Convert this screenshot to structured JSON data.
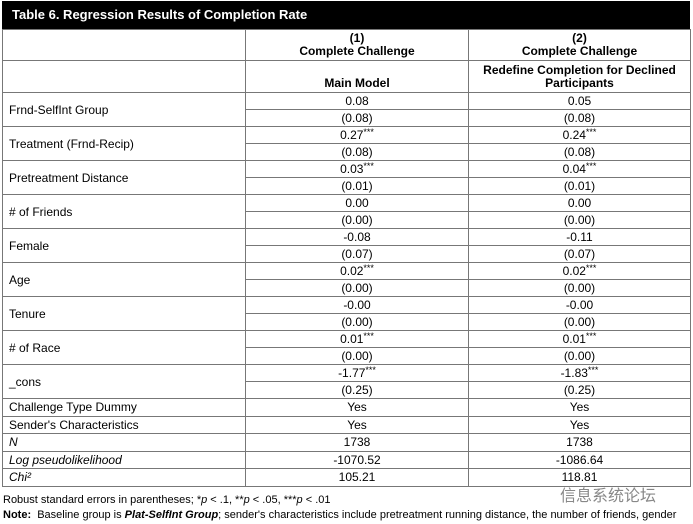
{
  "title": "Table 6.  Regression Results of Completion Rate",
  "header": {
    "col1": {
      "number": "(1)",
      "name": "Complete Challenge",
      "model": "Main Model"
    },
    "col2": {
      "number": "(2)",
      "name": "Complete Challenge",
      "model": "Redefine Completion for Declined Participants"
    }
  },
  "rows": [
    {
      "label": "Frnd-SelfInt Group",
      "col1": {
        "coef": "0.08",
        "stars": "",
        "se": "(0.08)"
      },
      "col2": {
        "coef": "0.05",
        "stars": "",
        "se": "(0.08)"
      }
    },
    {
      "label": "Treatment (Frnd-Recip)",
      "col1": {
        "coef": "0.27",
        "stars": "***",
        "se": "(0.08)"
      },
      "col2": {
        "coef": "0.24",
        "stars": "***",
        "se": "(0.08)"
      }
    },
    {
      "label": "Pretreatment Distance",
      "col1": {
        "coef": "0.03",
        "stars": "***",
        "se": "(0.01)"
      },
      "col2": {
        "coef": "0.04",
        "stars": "***",
        "se": "(0.01)"
      }
    },
    {
      "label": "# of Friends",
      "col1": {
        "coef": "0.00",
        "stars": "",
        "se": "(0.00)"
      },
      "col2": {
        "coef": "0.00",
        "stars": "",
        "se": "(0.00)"
      }
    },
    {
      "label": "Female",
      "col1": {
        "coef": "-0.08",
        "stars": "",
        "se": "(0.07)"
      },
      "col2": {
        "coef": "-0.11",
        "stars": "",
        "se": "(0.07)"
      }
    },
    {
      "label": "Age",
      "col1": {
        "coef": "0.02",
        "stars": "***",
        "se": "(0.00)"
      },
      "col2": {
        "coef": "0.02",
        "stars": "***",
        "se": "(0.00)"
      }
    },
    {
      "label": "Tenure",
      "col1": {
        "coef": "-0.00",
        "stars": "",
        "se": "(0.00)"
      },
      "col2": {
        "coef": "-0.00",
        "stars": "",
        "se": "(0.00)"
      }
    },
    {
      "label": "# of Race",
      "col1": {
        "coef": "0.01",
        "stars": "***",
        "se": "(0.00)"
      },
      "col2": {
        "coef": "0.01",
        "stars": "***",
        "se": "(0.00)"
      }
    },
    {
      "label": "_cons",
      "col1": {
        "coef": "-1.77",
        "stars": "***",
        "se": "(0.25)"
      },
      "col2": {
        "coef": "-1.83",
        "stars": "***",
        "se": "(0.25)"
      }
    }
  ],
  "stats": [
    {
      "label": "Challenge Type Dummy",
      "col1": "Yes",
      "col2": "Yes"
    },
    {
      "label": "Sender's Characteristics",
      "col1": "Yes",
      "col2": "Yes"
    },
    {
      "label": "N",
      "col1": "1738",
      "col2": "1738"
    },
    {
      "label": "Log pseudolikelihood",
      "col1": "-1070.52",
      "col2": "-1086.64"
    },
    {
      "label": "Chi²",
      "col1": "105.21",
      "col2": "118.81"
    }
  ],
  "notes": [
    [
      "Robust standard errors in parentheses; *",
      "p",
      " < .1, **",
      "p",
      " < .05, ***",
      "p",
      " < .01"
    ],
    [
      "Note:",
      "  Baseline group is ",
      "Plat-SelfInt Group",
      "; sender's characteristics include pretreatment running distance, the number of friends, gender"
    ]
  ],
  "watermark": "信息系统论坛"
}
